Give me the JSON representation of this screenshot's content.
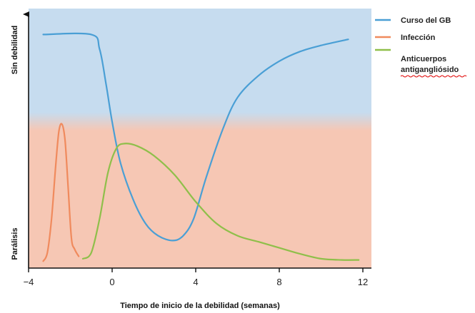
{
  "chart_data": {
    "type": "line",
    "xlabel": "Tiempo de inicio de la debilidad (semanas)",
    "y_top_label": "Sin debilidad",
    "y_bottom_label": "Parálisis",
    "xlim": [
      -4,
      12
    ],
    "ylim": [
      0,
      100
    ],
    "x_ticks": [
      -4,
      0,
      4,
      8,
      12
    ],
    "grid": false,
    "legend_position": "right",
    "background": {
      "top_color": "#c6dcef",
      "bottom_color": "#f6c7b4"
    },
    "series": [
      {
        "name": "Curso del GB",
        "color": "#4a9fd5",
        "points": [
          [
            -3.3,
            94
          ],
          [
            -1.0,
            94
          ],
          [
            -0.6,
            88
          ],
          [
            -0.3,
            74
          ],
          [
            0.0,
            58
          ],
          [
            0.4,
            41
          ],
          [
            1.0,
            26
          ],
          [
            1.6,
            16
          ],
          [
            2.2,
            11
          ],
          [
            2.9,
            9
          ],
          [
            3.4,
            11
          ],
          [
            3.9,
            18
          ],
          [
            4.5,
            35
          ],
          [
            5.3,
            55
          ],
          [
            6.0,
            68
          ],
          [
            7.0,
            77
          ],
          [
            8.0,
            83
          ],
          [
            9.0,
            87
          ],
          [
            10.0,
            89.5
          ],
          [
            11.3,
            92
          ]
        ]
      },
      {
        "name": "Infección",
        "color": "#f08a5d",
        "points": [
          [
            -3.3,
            0.5
          ],
          [
            -3.1,
            4
          ],
          [
            -2.9,
            18
          ],
          [
            -2.7,
            40
          ],
          [
            -2.55,
            54
          ],
          [
            -2.4,
            57
          ],
          [
            -2.25,
            50
          ],
          [
            -2.1,
            30
          ],
          [
            -1.95,
            10
          ],
          [
            -1.8,
            5.5
          ],
          [
            -1.6,
            2.5
          ]
        ]
      },
      {
        "name": "Anticuerpos antigangliósido",
        "color": "#8fbf4a",
        "points": [
          [
            -1.4,
            1.5
          ],
          [
            -1.0,
            4
          ],
          [
            -0.6,
            18
          ],
          [
            -0.2,
            37
          ],
          [
            0.2,
            47
          ],
          [
            0.6,
            49
          ],
          [
            1.2,
            48
          ],
          [
            2.0,
            44
          ],
          [
            3.0,
            36
          ],
          [
            4.0,
            25
          ],
          [
            5.0,
            16
          ],
          [
            6.0,
            11
          ],
          [
            7.0,
            8.5
          ],
          [
            8.0,
            6
          ],
          [
            9.0,
            3.5
          ],
          [
            10.0,
            1.5
          ],
          [
            11.0,
            1
          ],
          [
            11.8,
            1
          ]
        ]
      }
    ]
  }
}
